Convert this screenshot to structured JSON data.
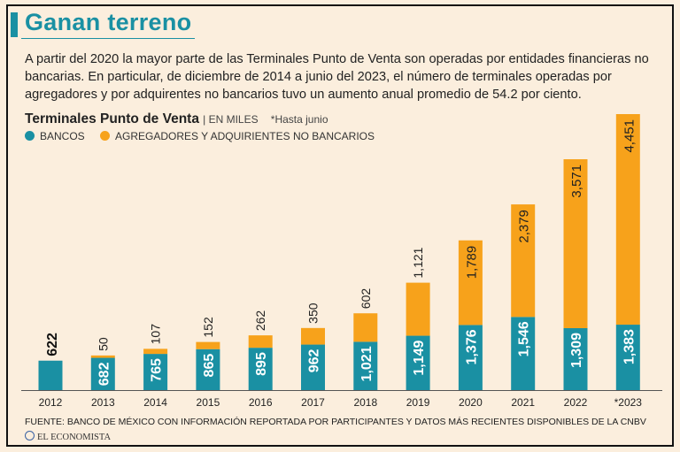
{
  "header": {
    "title": "Ganan terreno",
    "intro": "A partir del 2020 la mayor parte de las Terminales Punto de Venta son operadas por entidades financieras no bancarias. En particular, de diciembre de 2014 a junio del 2023, el número de terminales operadas por agregadores y por adquirentes no bancarios tuvo un aumento anual promedio de 54.2 por ciento."
  },
  "chart_data": {
    "type": "bar",
    "stacked": true,
    "title": "Terminales Punto de Venta",
    "unit_label": "| EN MILES",
    "note": "*Hasta junio",
    "categories": [
      "2012",
      "2013",
      "2014",
      "2015",
      "2016",
      "2017",
      "2018",
      "2019",
      "2020",
      "2021",
      "2022",
      "*2023"
    ],
    "series": [
      {
        "name": "BANCOS",
        "color": "#1a90a3",
        "values": [
          622,
          682,
          765,
          865,
          895,
          962,
          1021,
          1149,
          1376,
          1546,
          1309,
          1383
        ],
        "labels": [
          "622",
          "682",
          "765",
          "865",
          "895",
          "962",
          "1,021",
          "1,149",
          "1,376",
          "1,546",
          "1,309",
          "1,383"
        ]
      },
      {
        "name": "AGREGADORES Y ADQUIRIENTES NO BANCARIOS",
        "color": "#f7a21b",
        "values": [
          0,
          50,
          107,
          152,
          262,
          350,
          602,
          1121,
          1789,
          2379,
          3571,
          4451
        ],
        "labels": [
          "",
          "50",
          "107",
          "152",
          "262",
          "350",
          "602",
          "1,121",
          "1,789",
          "2,379",
          "3,571",
          "4,451"
        ]
      }
    ],
    "legend_position": "top-left",
    "grid": false
  },
  "footer": {
    "source": "FUENTE: BANCO DE MÉXICO CON INFORMACIÓN REPORTADA POR PARTICIPANTES Y DATOS MÁS RECIENTES DISPONIBLES DE LA CNBV",
    "brand": "EL ECONOMISTA"
  }
}
